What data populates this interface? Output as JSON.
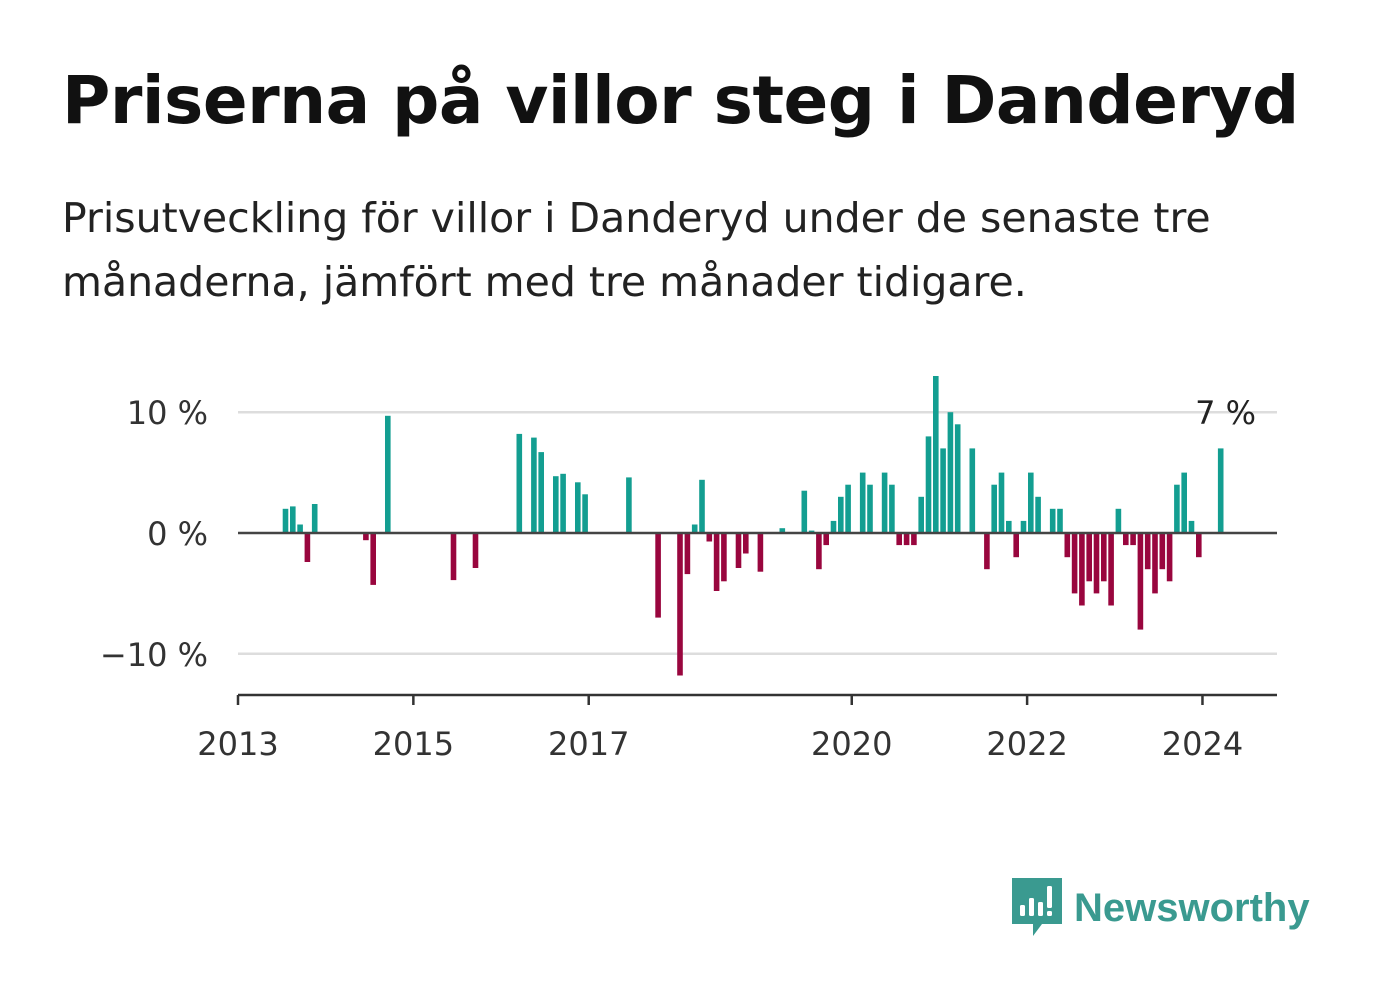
{
  "chart_data": {
    "type": "bar",
    "title": "Priserna på villor steg i Danderyd",
    "subtitle": "Prisutveckling för villor i Danderyd under de senaste tre månaderna, jämfört med tre månader tidigare.",
    "xlabel": "",
    "ylabel": "",
    "ylim": [
      -12.5,
      12
    ],
    "yticks": [
      10,
      0,
      -10
    ],
    "ytick_labels": [
      "10 %",
      "0 %",
      "−10 %"
    ],
    "xticks": [
      2013,
      2015,
      2017,
      2020,
      2022,
      2024
    ],
    "xtick_labels": [
      "2013",
      "2015",
      "2017",
      "2020",
      "2022",
      "2024"
    ],
    "grid": true,
    "colors": {
      "positive": "#139e91",
      "negative": "#99063e"
    },
    "annotation": {
      "text": "7 %",
      "date": "2024-03"
    },
    "x": [
      "2013-07",
      "2013-08",
      "2013-09",
      "2013-10",
      "2013-11",
      "2014-06",
      "2014-07",
      "2014-09",
      "2015-06",
      "2015-09",
      "2016-03",
      "2016-05",
      "2016-06",
      "2016-08",
      "2016-09",
      "2016-11",
      "2016-12",
      "2017-06",
      "2017-10",
      "2018-01",
      "2018-02",
      "2018-03",
      "2018-04",
      "2018-05",
      "2018-06",
      "2018-07",
      "2018-09",
      "2018-10",
      "2018-12",
      "2019-03",
      "2019-06",
      "2019-07",
      "2019-08",
      "2019-09",
      "2019-10",
      "2019-11",
      "2019-12",
      "2020-02",
      "2020-03",
      "2020-05",
      "2020-06",
      "2020-07",
      "2020-08",
      "2020-09",
      "2020-10",
      "2020-11",
      "2020-12",
      "2021-01",
      "2021-02",
      "2021-03",
      "2021-05",
      "2021-07",
      "2021-08",
      "2021-09",
      "2021-10",
      "2021-11",
      "2021-12",
      "2022-01",
      "2022-02",
      "2022-04",
      "2022-05",
      "2022-06",
      "2022-07",
      "2022-08",
      "2022-09",
      "2022-10",
      "2022-11",
      "2022-12",
      "2023-01",
      "2023-02",
      "2023-03",
      "2023-04",
      "2023-05",
      "2023-06",
      "2023-07",
      "2023-08",
      "2023-09",
      "2023-10",
      "2023-11",
      "2023-12",
      "2024-03"
    ],
    "values": [
      2,
      2.2,
      0.7,
      -2.4,
      2.4,
      -0.6,
      -4.3,
      9.7,
      -3.9,
      -2.9,
      8.2,
      7.9,
      6.7,
      4.7,
      4.9,
      4.2,
      3.2,
      4.6,
      -7,
      -11.8,
      -3.4,
      0.7,
      4.4,
      -0.7,
      -4.8,
      -4,
      -2.9,
      -1.7,
      -3.2,
      0.4,
      3.5,
      0.2,
      -3,
      -1,
      1,
      3,
      4,
      5,
      4,
      5,
      4,
      -1,
      -1,
      -1,
      3,
      8,
      13,
      7,
      10,
      9,
      7,
      -3,
      4,
      5,
      1,
      -2,
      1,
      5,
      3,
      2,
      2,
      -2,
      -5,
      -6,
      -4,
      -5,
      -4,
      -6,
      2,
      -1,
      -1,
      -8,
      -3,
      -5,
      -3,
      -4,
      4,
      5,
      1,
      -2,
      7
    ]
  },
  "brand": {
    "name": "Newsworthy",
    "color": "#3a9a90",
    "icon": "newsworthy-logo-icon"
  }
}
